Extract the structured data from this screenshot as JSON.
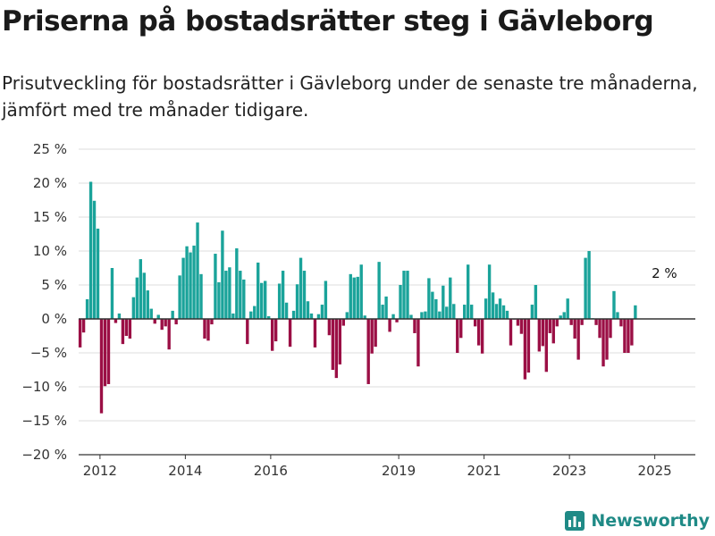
{
  "title": "Priserna på bostadsrätter steg i Gävleborg",
  "subtitle": "Prisutveckling för bostadsrätter i Gävleborg under de senaste tre månaderna, jämfört med tre månader tidigare.",
  "brand": "Newsworthy",
  "colors": {
    "positive": "#1aa39a",
    "negative": "#9b0f45",
    "grid": "#dddddd",
    "zero": "#333333"
  },
  "chart_data": {
    "type": "bar",
    "title": "Priserna på bostadsrätter steg i Gävleborg",
    "xlabel": "",
    "ylabel": "",
    "ylim": [
      -20,
      25
    ],
    "xlim": [
      2011.5,
      2025.95
    ],
    "y_ticks": [
      25,
      20,
      15,
      10,
      5,
      0,
      -5,
      -10,
      -15,
      -20
    ],
    "y_tick_labels": [
      "25 %",
      "20 %",
      "15 %",
      "10 %",
      "5 %",
      "0 %",
      "−5 %",
      "−10 %",
      "−15 %",
      "−20 %"
    ],
    "x_ticks": [
      2012,
      2014,
      2016,
      2019,
      2021,
      2023,
      2025
    ],
    "x_tick_labels": [
      "2012",
      "2014",
      "2016",
      "2019",
      "2021",
      "2023",
      "2025"
    ],
    "grid": true,
    "start": 2011.54,
    "step": 0.0834,
    "values": [
      -4.2,
      -2,
      2.9,
      20.2,
      17.4,
      13.3,
      -13.9,
      -9.9,
      -9.6,
      7.5,
      -0.6,
      0.8,
      -3.7,
      -2.5,
      -2.9,
      3.2,
      6.1,
      8.8,
      6.8,
      4.2,
      1.5,
      -0.7,
      0.6,
      -1.6,
      -1.1,
      -4.5,
      1.2,
      -0.8,
      6.4,
      9,
      10.7,
      9.8,
      10.8,
      14.2,
      6.6,
      -2.9,
      -3.2,
      -0.8,
      9.6,
      5.4,
      13,
      7.1,
      7.6,
      0.8,
      10.4,
      7.1,
      5.8,
      -3.7,
      1.1,
      1.9,
      8.3,
      5.3,
      5.6,
      0.4,
      -4.7,
      -3.3,
      5.2,
      7.1,
      2.4,
      -4.1,
      1.2,
      5.1,
      9,
      7.1,
      2.6,
      0.8,
      -4.2,
      0.7,
      2.1,
      5.6,
      -2.4,
      -7.5,
      -8.7,
      -6.7,
      -1,
      1,
      6.6,
      6.1,
      6.2,
      8,
      0.5,
      -9.6,
      -5.1,
      -4.1,
      8.4,
      2.1,
      3.3,
      -1.9,
      0.7,
      -0.5,
      5,
      7.1,
      7.1,
      0.6,
      -2.1,
      -7,
      1,
      1.1,
      6,
      4,
      2.9,
      1.1,
      4.9,
      1.8,
      6.1,
      2.2,
      -5,
      -2.8,
      2.1,
      8,
      2.1,
      -1.1,
      -3.9,
      -5.1,
      3,
      8,
      3.9,
      2.2,
      3,
      2,
      1.2,
      -3.9,
      -0.1,
      -1,
      -2.2,
      -8.9,
      -7.9,
      2.1,
      5,
      -4.8,
      -4,
      -7.8,
      -2.1,
      -3.6,
      -1.1,
      0.5,
      1,
      3,
      -0.9,
      -2.9,
      -6,
      -0.9,
      9,
      10,
      0.1,
      -0.9,
      -2.8,
      -7,
      -6,
      -2.8,
      4.1,
      1,
      -1.1,
      -5,
      -5,
      -3.9,
      2
    ],
    "annotation": {
      "label": "2 %",
      "x": 2025.12,
      "y": 2
    }
  }
}
